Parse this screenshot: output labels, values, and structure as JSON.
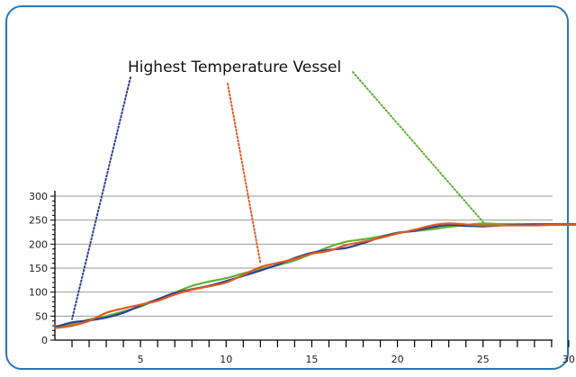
{
  "chart_data": {
    "type": "line",
    "title": "",
    "xlabel": "",
    "ylabel": "",
    "xlim": [
      0,
      31
    ],
    "ylim": [
      0,
      300
    ],
    "xticks": [
      5,
      10,
      15,
      20,
      25,
      30
    ],
    "yticks": [
      0,
      50,
      100,
      150,
      200,
      250,
      300
    ],
    "grid": "horizontal",
    "legend": "none",
    "annotation": {
      "text": "Highest Temperature Vessel",
      "targets": [
        {
          "color": "#2e3e94",
          "x": 1,
          "y": 44
        },
        {
          "color": "#e25a22",
          "x": 12,
          "y": 160
        },
        {
          "color": "#5fb233",
          "x": 25,
          "y": 246
        }
      ]
    },
    "series": [
      {
        "color": "#2e3e94",
        "x": [
          0,
          1,
          2,
          3,
          4,
          5,
          6,
          7,
          8,
          9,
          10,
          11,
          12,
          13,
          14,
          15,
          16,
          17,
          18,
          19,
          20,
          21,
          22,
          23,
          24,
          25,
          26,
          27,
          28,
          29,
          30,
          31
        ],
        "values": [
          27,
          37,
          41,
          47,
          57,
          72,
          85,
          98,
          106,
          113,
          123,
          134,
          145,
          157,
          171,
          182,
          188,
          192,
          202,
          214,
          223,
          228,
          235,
          240,
          238,
          237,
          239,
          240,
          241,
          241,
          241,
          241
        ]
      },
      {
        "color": "#e25a22",
        "x": [
          0,
          1,
          2,
          3,
          4,
          5,
          6,
          7,
          8,
          9,
          10,
          11,
          12,
          13,
          14,
          15,
          16,
          17,
          18,
          19,
          20,
          21,
          22,
          23,
          24,
          25,
          26,
          27,
          28,
          29,
          30,
          31
        ],
        "values": [
          25,
          30,
          40,
          57,
          66,
          74,
          82,
          95,
          105,
          112,
          120,
          136,
          152,
          161,
          169,
          180,
          186,
          198,
          205,
          213,
          222,
          230,
          239,
          243,
          241,
          239,
          239,
          239,
          239,
          240,
          240,
          241
        ]
      },
      {
        "color": "#5fb233",
        "x": [
          0,
          1,
          2,
          3,
          4,
          5,
          6,
          7,
          8,
          9,
          10,
          11,
          12,
          13,
          14,
          15,
          16,
          17,
          18,
          19,
          20,
          21,
          22,
          23,
          24,
          25,
          26,
          27,
          28,
          29,
          30,
          31
        ],
        "values": [
          29,
          33,
          43,
          50,
          60,
          70,
          85,
          99,
          113,
          122,
          129,
          139,
          148,
          156,
          166,
          180,
          194,
          205,
          210,
          216,
          224,
          227,
          231,
          236,
          240,
          243,
          242,
          242,
          242,
          242,
          242,
          242
        ]
      }
    ]
  }
}
